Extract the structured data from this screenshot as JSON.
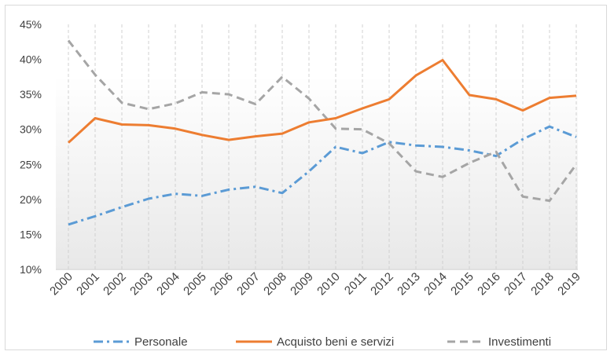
{
  "chart_data": {
    "type": "line",
    "categories": [
      "2000",
      "2001",
      "2002",
      "2003",
      "2004",
      "2005",
      "2006",
      "2007",
      "2008",
      "2009",
      "2010",
      "2011",
      "2012",
      "2013",
      "2014",
      "2015",
      "2016",
      "2017",
      "2018",
      "2019"
    ],
    "ylim": [
      0.1,
      0.45
    ],
    "yticks": [
      0.1,
      0.15,
      0.2,
      0.25,
      0.3,
      0.35,
      0.4,
      0.45
    ],
    "ytick_labels": [
      "10%",
      "15%",
      "20%",
      "25%",
      "30%",
      "35%",
      "40%",
      "45%"
    ],
    "grid": "vertical dashed",
    "legend_position": "bottom",
    "series": [
      {
        "name": "Personale",
        "color": "#5b9bd5",
        "dash": "dash-dot",
        "values": [
          0.164,
          0.176,
          0.189,
          0.201,
          0.208,
          0.205,
          0.214,
          0.218,
          0.209,
          0.24,
          0.275,
          0.266,
          0.282,
          0.277,
          0.275,
          0.27,
          0.262,
          0.286,
          0.304,
          0.289
        ]
      },
      {
        "name": "Acquisto beni e servizi",
        "color": "#ed7d31",
        "dash": "solid",
        "values": [
          0.281,
          0.316,
          0.307,
          0.306,
          0.301,
          0.292,
          0.285,
          0.29,
          0.294,
          0.31,
          0.316,
          0.33,
          0.343,
          0.377,
          0.399,
          0.349,
          0.343,
          0.327,
          0.345,
          0.348
        ]
      },
      {
        "name": "Investimenti",
        "color": "#a5a5a5",
        "dash": "dashed",
        "values": [
          0.427,
          0.378,
          0.338,
          0.329,
          0.337,
          0.353,
          0.35,
          0.336,
          0.375,
          0.344,
          0.301,
          0.3,
          0.28,
          0.24,
          0.232,
          0.252,
          0.268,
          0.204,
          0.198,
          0.25
        ]
      }
    ]
  }
}
